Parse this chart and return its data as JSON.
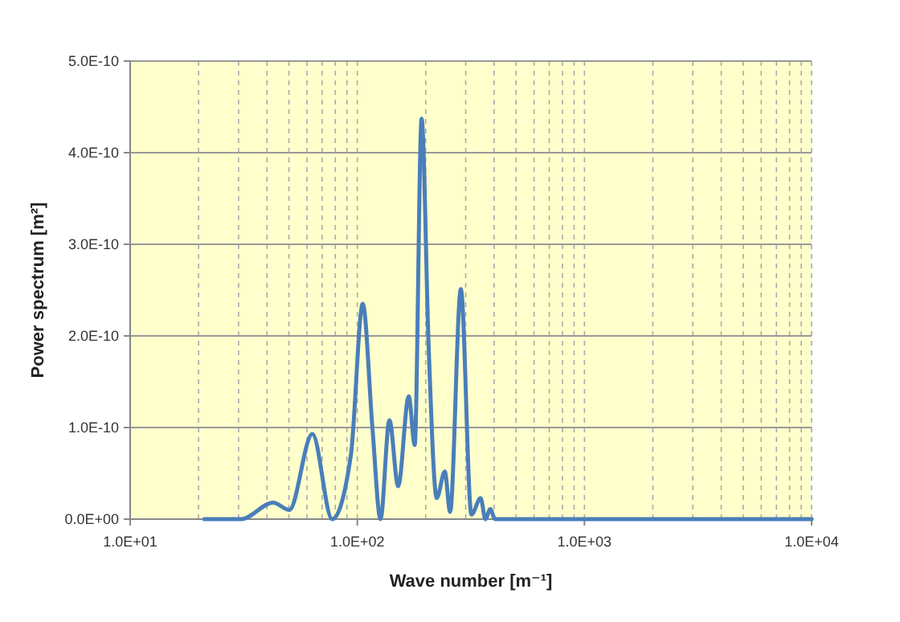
{
  "chart_data": {
    "type": "line",
    "xlabel": "Wave number [m⁻¹]",
    "ylabel": "Power spectrum [m²]",
    "log": "x",
    "grid": true,
    "marker": "none",
    "line_style": "solid",
    "xlim": [
      10,
      10000
    ],
    "xticks": [
      {
        "value": 10,
        "label": "1.0E+01"
      },
      {
        "value": 20,
        "label": null
      },
      {
        "value": 30,
        "label": null
      },
      {
        "value": 40,
        "label": null
      },
      {
        "value": 50,
        "label": null
      },
      {
        "value": 60,
        "label": null
      },
      {
        "value": 70,
        "label": null
      },
      {
        "value": 80,
        "label": null
      },
      {
        "value": 90,
        "label": null
      },
      {
        "value": 100,
        "label": "1.0E+02"
      },
      {
        "value": 200,
        "label": null
      },
      {
        "value": 300,
        "label": null
      },
      {
        "value": 400,
        "label": null
      },
      {
        "value": 500,
        "label": null
      },
      {
        "value": 600,
        "label": null
      },
      {
        "value": 700,
        "label": null
      },
      {
        "value": 800,
        "label": null
      },
      {
        "value": 900,
        "label": null
      },
      {
        "value": 1000,
        "label": "1.0E+03"
      },
      {
        "value": 2000,
        "label": null
      },
      {
        "value": 3000,
        "label": null
      },
      {
        "value": 4000,
        "label": null
      },
      {
        "value": 5000,
        "label": null
      },
      {
        "value": 6000,
        "label": null
      },
      {
        "value": 7000,
        "label": null
      },
      {
        "value": 8000,
        "label": null
      },
      {
        "value": 9000,
        "label": null
      },
      {
        "value": 10000,
        "label": "1.0E+04"
      }
    ],
    "ylim": [
      0,
      5e-10
    ],
    "yticks": [
      {
        "value": 0,
        "label": "0.0E+00"
      },
      {
        "value": 1e-10,
        "label": "1.0E-10"
      },
      {
        "value": 2e-10,
        "label": "2.0E-10"
      },
      {
        "value": 3e-10,
        "label": "3.0E-10"
      },
      {
        "value": 4e-10,
        "label": "4.0E-10"
      },
      {
        "value": 5e-10,
        "label": "5.0E-10"
      }
    ],
    "series": [
      {
        "color": "#4a7ebb",
        "x": [
          21.2,
          30.8,
          42.6,
          50.2,
          63.4,
          77.5,
          93.7,
          105.7,
          116.6,
          126.5,
          138.5,
          151.3,
          168.5,
          178.9,
          191.9,
          206.2,
          223.7,
          242.7,
          256.1,
          285.6,
          318,
          349,
          366.5,
          384.9,
          404.2,
          491,
          10000
        ],
        "values": [
          0,
          0,
          1.8e-11,
          1e-11,
          9.3e-11,
          0,
          7e-11,
          2.35e-10,
          9.9e-11,
          0,
          1.08e-10,
          3.6e-11,
          1.34e-10,
          8.1e-11,
          4.37e-10,
          1.86e-10,
          2.3e-11,
          5.2e-11,
          8e-12,
          2.51e-10,
          5e-12,
          2.3e-11,
          0,
          1.1e-11,
          0,
          0,
          0
        ]
      }
    ]
  }
}
